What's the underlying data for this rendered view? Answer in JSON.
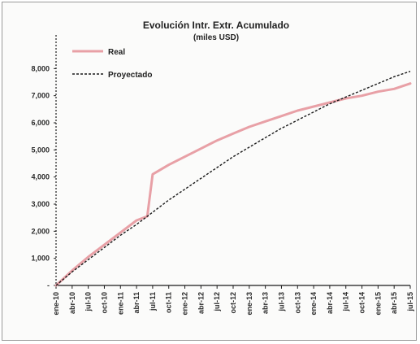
{
  "chart_data": {
    "type": "line",
    "title": "Evolución Intr. Extr. Acumulado",
    "subtitle": "(miles USD)",
    "xlabel": "",
    "ylabel": "",
    "x_ticks": [
      "ene-10",
      "abr-10",
      "jul-10",
      "oct-10",
      "ene-11",
      "abr-11",
      "jul-11",
      "oct-11",
      "ene-12",
      "abr-12",
      "jul-12",
      "oct-12",
      "ene-13",
      "abr-13",
      "jul-13",
      "oct-13",
      "ene-14",
      "abr-14",
      "jul-14",
      "oct-14",
      "ene-15",
      "abr-15",
      "jul-15"
    ],
    "y_ticks": [
      "-",
      "1,000",
      "2,000",
      "3,000",
      "4,000",
      "5,000",
      "6,000",
      "7,000",
      "8,000"
    ],
    "ylim": [
      0,
      9000
    ],
    "legend_position": "top-left",
    "series": [
      {
        "name": "Real",
        "color": "#e8a0a6",
        "style": "solid",
        "points": [
          [
            "ene-10",
            0
          ],
          [
            "abr-10",
            550
          ],
          [
            "jul-10",
            1050
          ],
          [
            "oct-10",
            1500
          ],
          [
            "ene-11",
            1950
          ],
          [
            "abr-11",
            2400
          ],
          [
            "jun-11",
            2550
          ],
          [
            "jul-11",
            4100
          ],
          [
            "oct-11",
            4450
          ],
          [
            "ene-12",
            4750
          ],
          [
            "abr-12",
            5050
          ],
          [
            "jul-12",
            5350
          ],
          [
            "oct-12",
            5600
          ],
          [
            "ene-13",
            5850
          ],
          [
            "abr-13",
            6050
          ],
          [
            "jul-13",
            6250
          ],
          [
            "oct-13",
            6450
          ],
          [
            "ene-14",
            6600
          ],
          [
            "abr-14",
            6750
          ],
          [
            "jul-14",
            6900
          ],
          [
            "oct-14",
            7000
          ],
          [
            "ene-15",
            7150
          ],
          [
            "abr-15",
            7250
          ],
          [
            "jul-15",
            7450
          ]
        ]
      },
      {
        "name": "Proyectado",
        "color": "#1a1a1a",
        "style": "dashed",
        "points": [
          [
            "ene-10",
            0
          ],
          [
            "abr-10",
            500
          ],
          [
            "jul-10",
            950
          ],
          [
            "oct-10",
            1400
          ],
          [
            "ene-11",
            1850
          ],
          [
            "abr-11",
            2250
          ],
          [
            "jul-11",
            2700
          ],
          [
            "oct-11",
            3150
          ],
          [
            "ene-12",
            3550
          ],
          [
            "abr-12",
            3950
          ],
          [
            "jul-12",
            4350
          ],
          [
            "oct-12",
            4750
          ],
          [
            "ene-13",
            5100
          ],
          [
            "abr-13",
            5450
          ],
          [
            "jul-13",
            5800
          ],
          [
            "oct-13",
            6100
          ],
          [
            "ene-14",
            6400
          ],
          [
            "abr-14",
            6700
          ],
          [
            "jul-14",
            6950
          ],
          [
            "oct-14",
            7200
          ],
          [
            "ene-15",
            7450
          ],
          [
            "abr-15",
            7700
          ],
          [
            "jul-15",
            7900
          ]
        ]
      }
    ]
  }
}
